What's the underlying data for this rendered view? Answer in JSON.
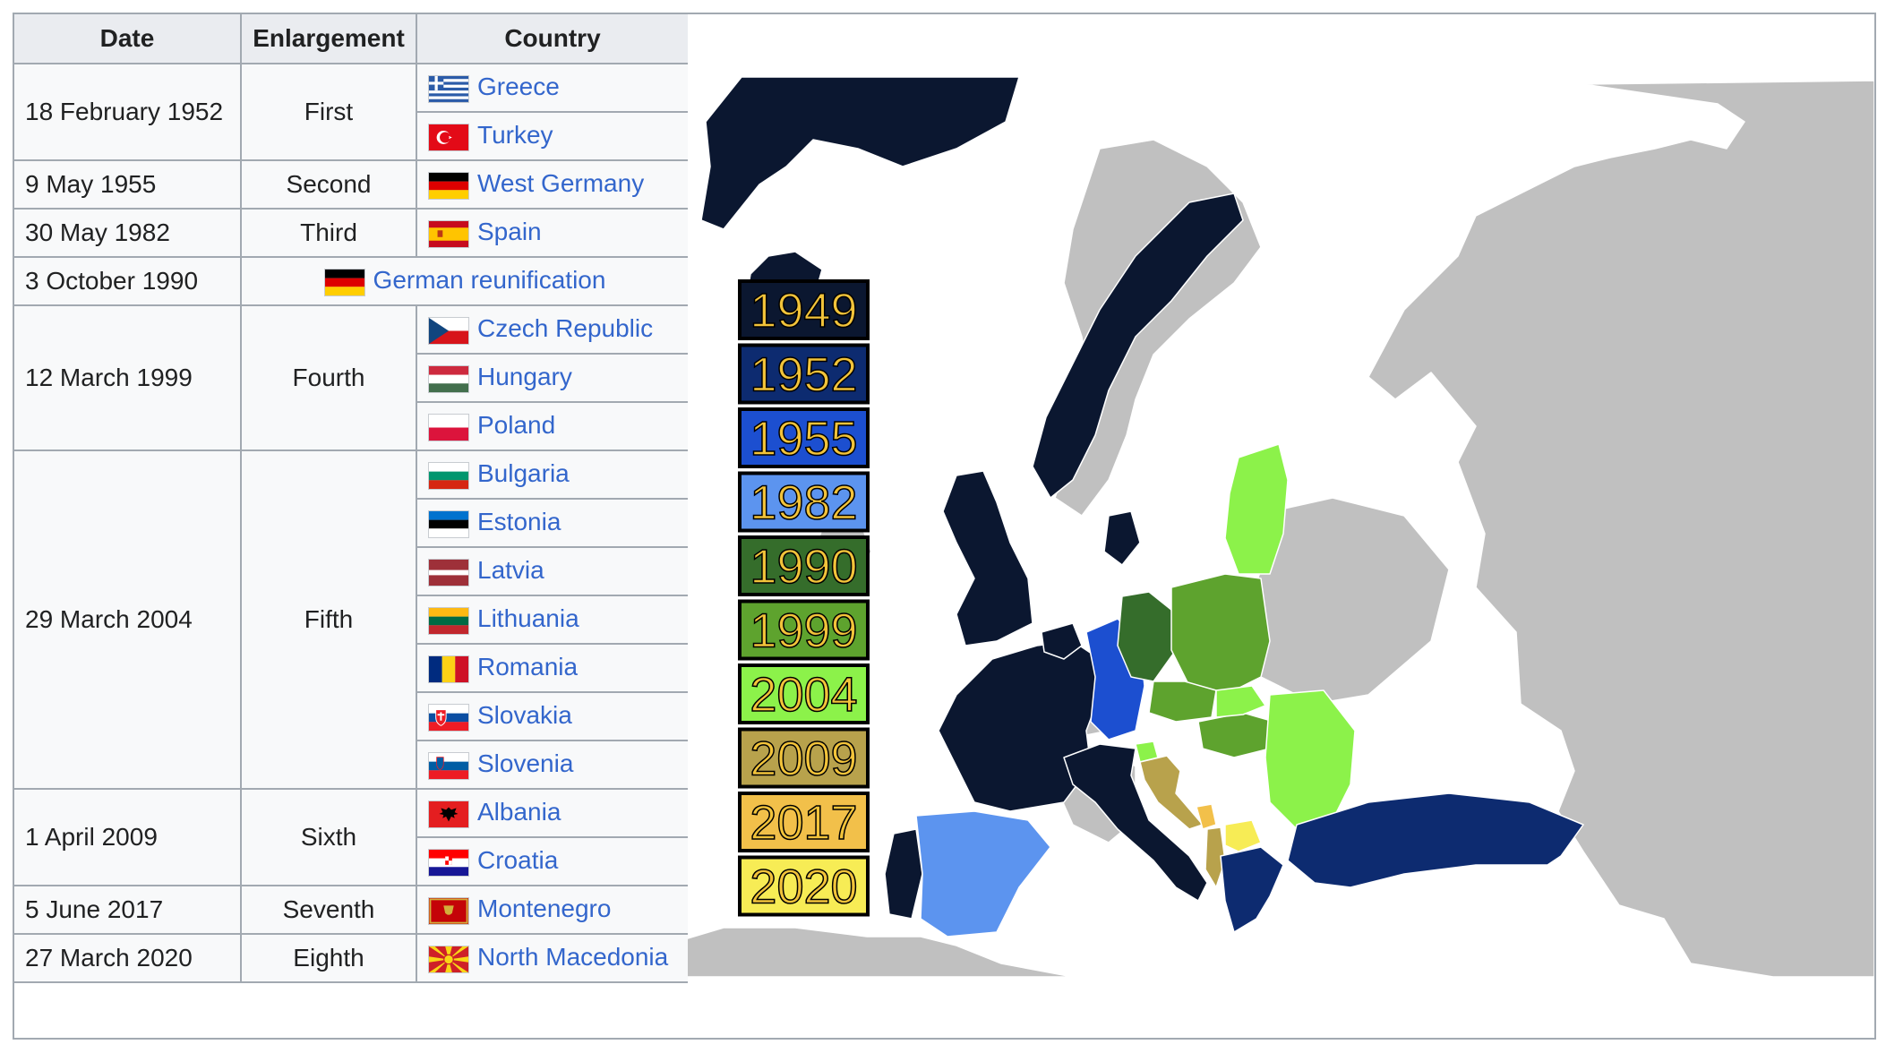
{
  "table": {
    "headers": [
      "Date",
      "Enlargement",
      "Country"
    ],
    "groups": [
      {
        "date": "18 February 1952",
        "enlargement": "First",
        "countries": [
          {
            "name": "Greece",
            "flag": "greece-flag"
          },
          {
            "name": "Turkey",
            "flag": "turkey-flag"
          }
        ]
      },
      {
        "date": "9 May 1955",
        "enlargement": "Second",
        "countries": [
          {
            "name": "West Germany",
            "flag": "germany-flag"
          }
        ]
      },
      {
        "date": "30 May 1982",
        "enlargement": "Third",
        "countries": [
          {
            "name": "Spain",
            "flag": "spain-flag"
          }
        ]
      },
      {
        "date": "3 October 1990",
        "enlargement": "",
        "countries": [
          {
            "name": "German reunification",
            "flag": "germany-flag"
          }
        ]
      },
      {
        "date": "12 March 1999",
        "enlargement": "Fourth",
        "countries": [
          {
            "name": "Czech Republic",
            "flag": "czech-flag"
          },
          {
            "name": "Hungary",
            "flag": "hungary-flag"
          },
          {
            "name": "Poland",
            "flag": "poland-flag"
          }
        ]
      },
      {
        "date": "29 March 2004",
        "enlargement": "Fifth",
        "countries": [
          {
            "name": "Bulgaria",
            "flag": "bulgaria-flag"
          },
          {
            "name": "Estonia",
            "flag": "estonia-flag"
          },
          {
            "name": "Latvia",
            "flag": "latvia-flag"
          },
          {
            "name": "Lithuania",
            "flag": "lithuania-flag"
          },
          {
            "name": "Romania",
            "flag": "romania-flag"
          },
          {
            "name": "Slovakia",
            "flag": "slovakia-flag"
          },
          {
            "name": "Slovenia",
            "flag": "slovenia-flag"
          }
        ]
      },
      {
        "date": "1 April 2009",
        "enlargement": "Sixth",
        "countries": [
          {
            "name": "Albania",
            "flag": "albania-flag"
          },
          {
            "name": "Croatia",
            "flag": "croatia-flag"
          }
        ]
      },
      {
        "date": "5 June 2017",
        "enlargement": "Seventh",
        "countries": [
          {
            "name": "Montenegro",
            "flag": "montenegro-flag"
          }
        ]
      },
      {
        "date": "27 March 2020",
        "enlargement": "Eighth",
        "countries": [
          {
            "name": "North Macedonia",
            "flag": "north-macedonia-flag"
          }
        ]
      }
    ]
  },
  "map": {
    "legend": [
      {
        "year": "1949",
        "color": "#0b1730"
      },
      {
        "year": "1952",
        "color": "#0d2b70"
      },
      {
        "year": "1955",
        "color": "#1c4fd0"
      },
      {
        "year": "1982",
        "color": "#5c94ef"
      },
      {
        "year": "1990",
        "color": "#356d2b"
      },
      {
        "year": "1999",
        "color": "#5ea32e"
      },
      {
        "year": "2004",
        "color": "#8cf24a"
      },
      {
        "year": "2009",
        "color": "#b8a24c"
      },
      {
        "year": "2017",
        "color": "#f2c04a"
      },
      {
        "year": "2020",
        "color": "#f7ec55"
      }
    ],
    "legend_text_color": "#f2c33a",
    "land_color": "#c0c0c0",
    "sea_color": "#ffffff"
  }
}
